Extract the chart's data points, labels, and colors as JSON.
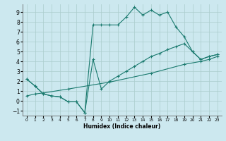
{
  "xlabel": "Humidex (Indice chaleur)",
  "background_color": "#cce8ef",
  "grid_color": "#aacccc",
  "line_color": "#1a7a6e",
  "xlim": [
    -0.5,
    23.5
  ],
  "ylim": [
    -1.5,
    9.8
  ],
  "xticks": [
    0,
    1,
    2,
    3,
    4,
    5,
    6,
    7,
    8,
    9,
    10,
    11,
    12,
    13,
    14,
    15,
    16,
    17,
    18,
    19,
    20,
    21,
    22,
    23
  ],
  "yticks": [
    -1,
    0,
    1,
    2,
    3,
    4,
    5,
    6,
    7,
    8,
    9
  ],
  "line1_x": [
    0,
    1,
    2,
    3,
    4,
    5,
    6,
    7,
    8,
    9,
    10,
    11,
    12,
    13,
    14,
    15,
    16,
    17,
    18,
    19,
    20,
    21,
    22,
    23
  ],
  "line1_y": [
    2.2,
    1.5,
    0.7,
    0.5,
    0.4,
    -0.1,
    -0.1,
    -1.2,
    7.7,
    7.7,
    7.7,
    7.7,
    8.5,
    9.5,
    8.7,
    9.2,
    8.7,
    9.0,
    7.5,
    6.5,
    5.0,
    4.2,
    4.5,
    4.7
  ],
  "line2_x": [
    0,
    1,
    2,
    3,
    4,
    5,
    6,
    7,
    8,
    9,
    10,
    11,
    12,
    13,
    14,
    15,
    16,
    17,
    18,
    19,
    20,
    21,
    22,
    23
  ],
  "line2_y": [
    2.2,
    1.5,
    0.7,
    0.5,
    0.4,
    -0.1,
    -0.1,
    -1.2,
    4.2,
    1.2,
    2.0,
    2.5,
    3.0,
    3.5,
    4.0,
    4.5,
    4.8,
    5.2,
    5.5,
    5.8,
    5.0,
    4.2,
    4.5,
    4.7
  ],
  "line3_x": [
    0,
    1,
    2,
    5,
    10,
    15,
    19,
    21,
    22,
    23
  ],
  "line3_y": [
    0.5,
    0.7,
    0.8,
    1.2,
    1.9,
    2.8,
    3.7,
    4.0,
    4.2,
    4.5
  ]
}
